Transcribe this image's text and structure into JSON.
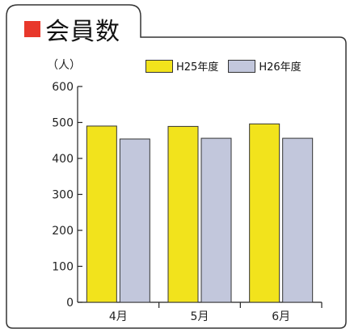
{
  "title": {
    "text": "会員数",
    "marker_color": "#e8382b"
  },
  "colors": {
    "frame": "#333333",
    "axis": "#222222",
    "h25": "#f2e31c",
    "h26": "#c2c7dc",
    "bar_stroke": "#333333"
  },
  "chart_data": {
    "type": "bar",
    "title": "会員数",
    "ylabel": "（人）",
    "xlabel": "",
    "ylim": [
      0,
      600
    ],
    "yticks": [
      0,
      100,
      200,
      300,
      400,
      500,
      600
    ],
    "categories": [
      "4月",
      "5月",
      "6月"
    ],
    "series": [
      {
        "name": "H25年度",
        "color": "#f2e31c",
        "values": [
          490,
          489,
          496
        ]
      },
      {
        "name": "H26年度",
        "color": "#c2c7dc",
        "values": [
          454,
          456,
          456
        ]
      }
    ],
    "legend_position": "top-right",
    "grid": false
  }
}
